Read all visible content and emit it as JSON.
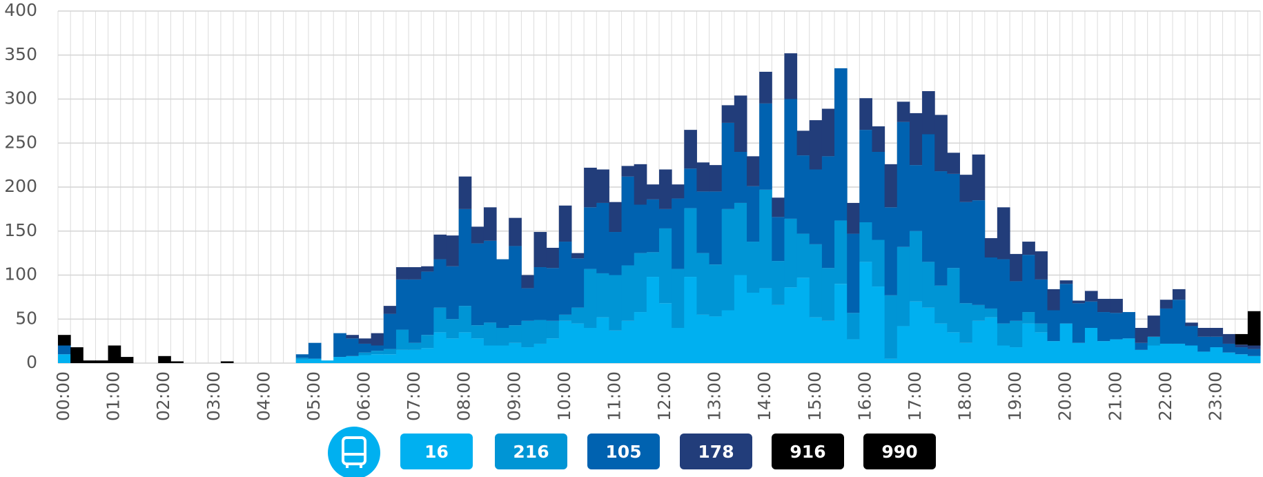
{
  "chart_data": {
    "type": "bar",
    "stacked": true,
    "categories": [
      "00:00",
      null,
      null,
      null,
      "01:00",
      null,
      null,
      null,
      "02:00",
      null,
      null,
      null,
      "03:00",
      null,
      null,
      null,
      "04:00",
      null,
      null,
      null,
      "05:00",
      null,
      null,
      null,
      "06:00",
      null,
      null,
      null,
      "07:00",
      null,
      null,
      null,
      "08:00",
      null,
      null,
      null,
      "09:00",
      null,
      null,
      null,
      "10:00",
      null,
      null,
      null,
      "11:00",
      null,
      null,
      null,
      "12:00",
      null,
      null,
      null,
      "13:00",
      null,
      null,
      null,
      "14:00",
      null,
      null,
      null,
      "15:00",
      null,
      null,
      null,
      "16:00",
      null,
      null,
      null,
      "17:00",
      null,
      null,
      null,
      "18:00",
      null,
      null,
      null,
      "19:00",
      null,
      null,
      null,
      "20:00",
      null,
      null,
      null,
      "21:00",
      null,
      null,
      null,
      "22:00",
      null,
      null,
      null,
      "23:00",
      null,
      null,
      null
    ],
    "series": [
      {
        "name": "16",
        "color": "#00b0f0",
        "values": [
          10,
          0,
          0,
          0,
          0,
          0,
          0,
          0,
          0,
          0,
          0,
          0,
          0,
          0,
          0,
          0,
          0,
          0,
          0,
          4,
          5,
          3,
          7,
          8,
          9,
          10,
          10,
          15,
          15,
          17,
          35,
          28,
          35,
          28,
          20,
          20,
          23,
          18,
          22,
          28,
          48,
          45,
          40,
          52,
          37,
          48,
          58,
          98,
          68,
          40,
          98,
          55,
          53,
          60,
          100,
          80,
          85,
          66,
          86,
          97,
          52,
          48,
          90,
          27,
          115,
          87,
          5,
          42,
          70,
          63,
          45,
          35,
          23,
          48,
          52,
          20,
          18,
          45,
          35,
          25,
          45,
          23,
          40,
          25,
          27,
          28,
          15,
          20,
          22,
          22,
          20,
          13,
          18,
          12,
          10,
          8
        ]
      },
      {
        "name": "216",
        "color": "#0095d5",
        "values": [
          0,
          0,
          0,
          0,
          0,
          0,
          0,
          0,
          0,
          0,
          0,
          0,
          0,
          0,
          0,
          0,
          0,
          0,
          0,
          2,
          0,
          0,
          0,
          0,
          3,
          4,
          6,
          23,
          8,
          15,
          28,
          22,
          30,
          15,
          26,
          20,
          20,
          30,
          27,
          20,
          7,
          18,
          67,
          50,
          63,
          63,
          67,
          28,
          85,
          67,
          78,
          70,
          59,
          115,
          82,
          58,
          112,
          50,
          78,
          50,
          83,
          60,
          72,
          30,
          45,
          53,
          72,
          90,
          80,
          52,
          43,
          73,
          45,
          18,
          10,
          25,
          30,
          13,
          10,
          0,
          0,
          0,
          0,
          0,
          0,
          0,
          0,
          10,
          0,
          0,
          0,
          0,
          0,
          0,
          0,
          0
        ]
      },
      {
        "name": "105",
        "color": "#0062b0",
        "values": [
          10,
          0,
          0,
          0,
          0,
          0,
          0,
          0,
          0,
          0,
          0,
          0,
          0,
          0,
          0,
          0,
          0,
          0,
          0,
          4,
          18,
          0,
          27,
          20,
          10,
          6,
          40,
          57,
          72,
          72,
          55,
          60,
          110,
          93,
          93,
          78,
          90,
          37,
          60,
          60,
          83,
          56,
          70,
          80,
          49,
          101,
          55,
          60,
          22,
          80,
          45,
          70,
          83,
          98,
          58,
          63,
          98,
          50,
          136,
          89,
          85,
          127,
          173,
          90,
          105,
          100,
          100,
          142,
          75,
          145,
          130,
          107,
          115,
          119,
          58,
          73,
          45,
          65,
          50,
          35,
          45,
          45,
          30,
          33,
          30,
          30,
          8,
          0,
          40,
          50,
          22,
          17,
          12,
          10,
          8,
          8
        ]
      },
      {
        "name": "178",
        "color": "#223d7a",
        "values": [
          0,
          0,
          0,
          0,
          0,
          0,
          0,
          0,
          0,
          0,
          0,
          0,
          0,
          0,
          0,
          0,
          0,
          0,
          0,
          0,
          0,
          0,
          0,
          4,
          6,
          14,
          9,
          14,
          14,
          6,
          28,
          35,
          37,
          19,
          38,
          0,
          32,
          15,
          40,
          23,
          41,
          6,
          45,
          38,
          34,
          12,
          46,
          17,
          45,
          16,
          44,
          33,
          30,
          20,
          64,
          34,
          36,
          22,
          52,
          28,
          56,
          54,
          0,
          35,
          36,
          29,
          49,
          23,
          59,
          49,
          64,
          24,
          31,
          52,
          22,
          59,
          31,
          15,
          32,
          24,
          4,
          3,
          12,
          15,
          16,
          0,
          17,
          24,
          10,
          12,
          4,
          10,
          10,
          11,
          3,
          4
        ]
      },
      {
        "name": "916",
        "color": "#000000",
        "values": [
          12,
          18,
          3,
          3,
          20,
          7,
          0,
          0,
          8,
          2,
          0,
          0,
          0,
          2,
          0,
          0,
          0,
          0,
          0,
          0,
          0,
          0,
          0,
          0,
          0,
          0,
          0,
          0,
          0,
          0,
          0,
          0,
          0,
          0,
          0,
          0,
          0,
          0,
          0,
          0,
          0,
          0,
          0,
          0,
          0,
          0,
          0,
          0,
          0,
          0,
          0,
          0,
          0,
          0,
          0,
          0,
          0,
          0,
          0,
          0,
          0,
          0,
          0,
          0,
          0,
          0,
          0,
          0,
          0,
          0,
          0,
          0,
          0,
          0,
          0,
          0,
          0,
          0,
          0,
          0,
          0,
          0,
          0,
          0,
          0,
          0,
          0,
          0,
          0,
          0,
          0,
          0,
          0,
          0,
          0,
          0
        ]
      },
      {
        "name": "990",
        "color": "#000000",
        "values": [
          0,
          0,
          0,
          0,
          0,
          0,
          0,
          0,
          0,
          0,
          0,
          0,
          0,
          0,
          0,
          0,
          0,
          0,
          0,
          0,
          0,
          0,
          0,
          0,
          0,
          0,
          0,
          0,
          0,
          0,
          0,
          0,
          0,
          0,
          0,
          0,
          0,
          0,
          0,
          0,
          0,
          0,
          0,
          0,
          0,
          0,
          0,
          0,
          0,
          0,
          0,
          0,
          0,
          0,
          0,
          0,
          0,
          0,
          0,
          0,
          0,
          0,
          0,
          0,
          0,
          0,
          0,
          0,
          0,
          0,
          0,
          0,
          0,
          0,
          0,
          0,
          0,
          0,
          0,
          0,
          0,
          0,
          0,
          0,
          0,
          0,
          0,
          0,
          0,
          0,
          0,
          0,
          0,
          0,
          12,
          39
        ]
      }
    ],
    "ylim": [
      0,
      400
    ],
    "yticks": [
      0,
      50,
      100,
      150,
      200,
      250,
      300,
      350,
      400
    ],
    "grid": true,
    "legend": "bottom"
  }
}
